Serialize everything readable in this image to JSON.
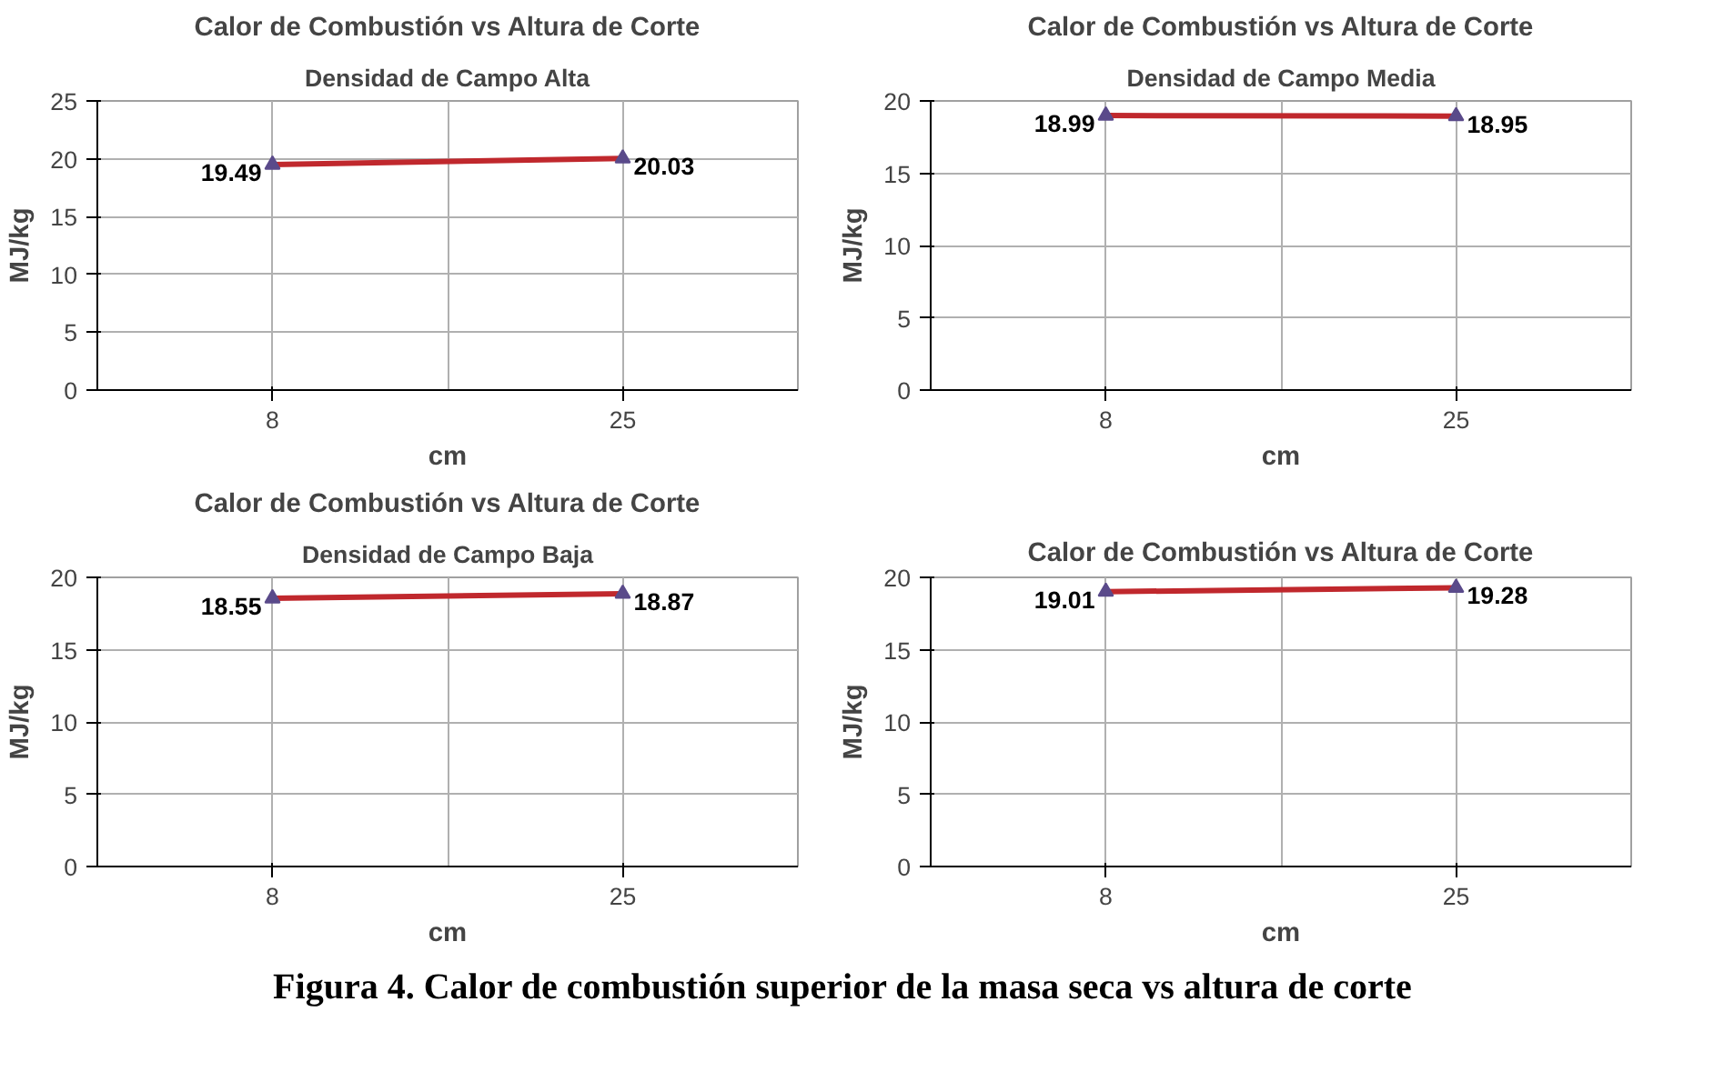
{
  "chart_data": [
    {
      "type": "line",
      "title": "Calor de Combustión vs Altura de Corte",
      "subtitle": "Densidad de Campo Alta",
      "xlabel": "cm",
      "ylabel": "MJ/kg",
      "categories": [
        "8",
        "25"
      ],
      "series": [
        {
          "color": "#c0282d",
          "values": [
            19.49,
            20.03
          ]
        }
      ],
      "ylim": [
        0,
        25
      ],
      "yticks": [
        0,
        5,
        10,
        15,
        20,
        25
      ],
      "grid": true,
      "marker": "triangle",
      "data_labels": true
    },
    {
      "type": "line",
      "title": "Calor de Combustión vs Altura de Corte",
      "subtitle": "Densidad de Campo Media",
      "xlabel": "cm",
      "ylabel": "MJ/kg",
      "categories": [
        "8",
        "25"
      ],
      "series": [
        {
          "color": "#c0282d",
          "values": [
            18.99,
            18.95
          ]
        }
      ],
      "ylim": [
        0,
        20
      ],
      "yticks": [
        0,
        5,
        10,
        15,
        20
      ],
      "grid": true,
      "marker": "triangle",
      "data_labels": true
    },
    {
      "type": "line",
      "title": "Calor de Combustión vs Altura de Corte",
      "subtitle": "Densidad de Campo Baja",
      "xlabel": "cm",
      "ylabel": "MJ/kg",
      "categories": [
        "8",
        "25"
      ],
      "series": [
        {
          "color": "#c0282d",
          "values": [
            18.55,
            18.87
          ]
        }
      ],
      "ylim": [
        0,
        20
      ],
      "yticks": [
        0,
        5,
        10,
        15,
        20
      ],
      "grid": true,
      "marker": "triangle",
      "data_labels": true
    },
    {
      "type": "line",
      "title": "Calor de Combustión vs Altura de Corte",
      "xlabel": "cm",
      "ylabel": "MJ/kg",
      "categories": [
        "8",
        "25"
      ],
      "series": [
        {
          "color": "#c0282d",
          "values": [
            19.01,
            19.28
          ]
        }
      ],
      "ylim": [
        0,
        20
      ],
      "yticks": [
        0,
        5,
        10,
        15,
        20
      ],
      "grid": true,
      "marker": "triangle",
      "data_labels": true,
      "annotations": [
        "Figura 4. Calor de combustión superior de la masa seca vs altura de corte"
      ]
    }
  ]
}
